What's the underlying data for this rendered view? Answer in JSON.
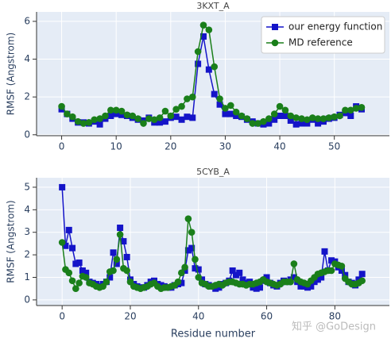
{
  "chart_data": [
    {
      "type": "line",
      "title": "3KXT_A",
      "ylabel": "RMSF (Angstrom)",
      "x": [
        0,
        1,
        2,
        3,
        4,
        5,
        6,
        7,
        8,
        9,
        10,
        11,
        12,
        13,
        14,
        15,
        16,
        17,
        18,
        19,
        20,
        21,
        22,
        23,
        24,
        25,
        26,
        27,
        28,
        29,
        30,
        31,
        32,
        33,
        34,
        35,
        36,
        37,
        38,
        39,
        40,
        41,
        42,
        43,
        44,
        45,
        46,
        47,
        48,
        49,
        50,
        51,
        52,
        53,
        54,
        55
      ],
      "series": [
        {
          "name": "our energy function",
          "color": "#1414c8",
          "marker": "square",
          "values": [
            1.35,
            1.1,
            0.85,
            0.65,
            0.65,
            0.6,
            0.7,
            0.55,
            0.85,
            1.0,
            1.1,
            1.05,
            1.0,
            0.9,
            0.8,
            0.75,
            0.9,
            0.65,
            0.65,
            0.7,
            0.9,
            0.95,
            0.8,
            0.95,
            0.9,
            3.75,
            5.2,
            3.45,
            2.15,
            1.6,
            1.1,
            1.1,
            1.0,
            0.95,
            0.8,
            0.7,
            0.6,
            0.55,
            0.6,
            0.8,
            1.0,
            1.0,
            0.75,
            0.55,
            0.6,
            0.6,
            0.8,
            0.6,
            0.7,
            0.85,
            0.9,
            1.05,
            1.15,
            1.0,
            1.5,
            1.35
          ]
        },
        {
          "name": "MD reference",
          "color": "#1a7f1a",
          "marker": "circle",
          "values": [
            1.5,
            1.1,
            0.95,
            0.7,
            0.6,
            0.65,
            0.8,
            0.85,
            1.0,
            1.3,
            1.3,
            1.25,
            1.05,
            1.0,
            0.85,
            0.6,
            0.85,
            0.8,
            0.9,
            1.25,
            1.0,
            1.35,
            1.5,
            1.9,
            2.0,
            4.4,
            5.8,
            5.55,
            3.6,
            1.9,
            1.4,
            1.55,
            1.2,
            1.0,
            0.85,
            0.6,
            0.6,
            0.7,
            0.85,
            1.1,
            1.5,
            1.3,
            1.0,
            0.9,
            0.85,
            0.8,
            0.9,
            0.85,
            0.85,
            0.9,
            0.95,
            1.0,
            1.3,
            1.3,
            1.4,
            1.45
          ]
        }
      ],
      "xlim": [
        -4.6,
        60.1
      ],
      "xticks": [
        0,
        10,
        20,
        30,
        40,
        50
      ],
      "ylim": [
        -0.05,
        6.5
      ],
      "yticks": [
        0,
        2,
        4,
        6
      ],
      "grid": true,
      "legend": "upper right"
    },
    {
      "type": "line",
      "title": "5CYB_A",
      "ylabel": "RMSF (Angstrom)",
      "xlabel": "Residue number",
      "x": [
        0,
        1,
        2,
        3,
        4,
        5,
        6,
        7,
        8,
        9,
        10,
        11,
        12,
        13,
        14,
        15,
        16,
        17,
        18,
        19,
        20,
        21,
        22,
        23,
        24,
        25,
        26,
        27,
        28,
        29,
        30,
        31,
        32,
        33,
        34,
        35,
        36,
        37,
        38,
        39,
        40,
        41,
        42,
        43,
        44,
        45,
        46,
        47,
        48,
        49,
        50,
        51,
        52,
        53,
        54,
        55,
        56,
        57,
        58,
        59,
        60,
        61,
        62,
        63,
        64,
        65,
        66,
        67,
        68,
        69,
        70,
        71,
        72,
        73,
        74,
        75,
        76,
        77,
        78,
        79,
        80,
        81,
        82,
        83,
        84,
        85,
        86,
        87,
        88
      ],
      "series": [
        {
          "name": "our energy function",
          "color": "#1414c8",
          "marker": "square",
          "values": [
            5.0,
            2.4,
            3.1,
            2.3,
            1.6,
            1.65,
            1.3,
            1.2,
            0.8,
            0.75,
            0.7,
            0.6,
            0.7,
            0.8,
            1.0,
            2.1,
            1.6,
            3.2,
            2.6,
            1.9,
            0.9,
            0.7,
            0.6,
            0.55,
            0.55,
            0.65,
            0.8,
            0.85,
            0.7,
            0.65,
            0.6,
            0.55,
            0.55,
            0.65,
            0.7,
            0.75,
            1.3,
            2.2,
            2.3,
            1.4,
            1.35,
            0.9,
            0.7,
            0.65,
            0.6,
            0.5,
            0.55,
            0.7,
            0.75,
            0.85,
            1.3,
            1.1,
            1.2,
            0.9,
            0.75,
            0.8,
            0.55,
            0.5,
            0.55,
            0.85,
            1.0,
            0.75,
            0.65,
            0.6,
            0.75,
            0.85,
            0.8,
            0.9,
            1.0,
            0.8,
            0.6,
            0.6,
            0.55,
            0.6,
            0.8,
            0.9,
            1.0,
            2.15,
            1.3,
            1.75,
            1.7,
            1.45,
            1.3,
            1.1,
            0.8,
            0.75,
            0.65,
            0.9,
            1.15
          ]
        },
        {
          "name": "MD reference",
          "color": "#1a7f1a",
          "marker": "circle",
          "values": [
            2.55,
            1.35,
            1.2,
            0.85,
            0.5,
            0.75,
            1.05,
            1.0,
            0.75,
            0.7,
            0.6,
            0.55,
            0.6,
            0.8,
            1.25,
            1.3,
            1.8,
            2.9,
            1.4,
            1.3,
            0.8,
            0.6,
            0.55,
            0.5,
            0.55,
            0.6,
            0.7,
            0.75,
            0.6,
            0.5,
            0.55,
            0.55,
            0.6,
            0.65,
            0.8,
            1.2,
            1.45,
            3.6,
            3.0,
            1.8,
            1.0,
            0.75,
            0.7,
            0.6,
            0.6,
            0.65,
            0.7,
            0.65,
            0.75,
            0.8,
            0.8,
            0.75,
            0.7,
            0.7,
            0.65,
            0.7,
            0.7,
            0.75,
            0.8,
            0.9,
            0.8,
            0.75,
            0.7,
            0.65,
            0.7,
            0.8,
            0.8,
            0.8,
            1.6,
            0.9,
            0.8,
            0.75,
            0.7,
            0.85,
            1.0,
            1.15,
            1.2,
            1.25,
            1.3,
            1.3,
            1.6,
            1.55,
            1.5,
            0.95,
            0.8,
            0.7,
            0.7,
            0.75,
            0.85
          ]
        }
      ],
      "xlim": [
        -7.5,
        96
      ],
      "xticks": [
        0,
        20,
        40,
        60,
        80
      ],
      "ylim": [
        -0.25,
        5.42
      ],
      "yticks": [
        0,
        1,
        2,
        3,
        4,
        5
      ],
      "grid": true
    }
  ],
  "watermark": "知乎 @GoDesign"
}
